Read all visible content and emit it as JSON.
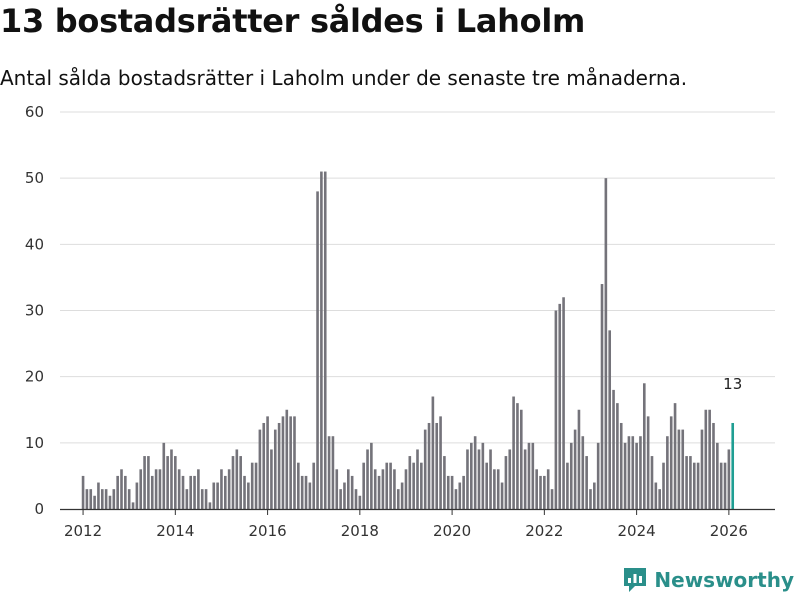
{
  "header": {
    "title": "13 bostadsrätter såldes i Laholm",
    "subtitle": "Antal sålda bostadsrätter i Laholm under de senaste tre månaderna."
  },
  "brand": {
    "name": "Newsworthy",
    "color": "#2a8f8a"
  },
  "colors": {
    "bar": "#74737a",
    "highlight": "#1f9e93",
    "grid": "#dddddd",
    "axis": "#333333"
  },
  "chart_data": {
    "type": "bar",
    "title": "13 bostadsrätter såldes i Laholm",
    "subtitle": "Antal sålda bostadsrätter i Laholm under de senaste tre månaderna.",
    "xlabel": "",
    "ylabel": "",
    "ylim": [
      0,
      60
    ],
    "yticks": [
      0,
      10,
      20,
      30,
      40,
      50,
      60
    ],
    "xlim": [
      2011.5,
      2027.0
    ],
    "xticks": [
      2012,
      2014,
      2016,
      2018,
      2020,
      2022,
      2024,
      2026
    ],
    "start": {
      "year": 2012,
      "month": 1
    },
    "grid": true,
    "highlight_label": "13",
    "values": [
      5,
      3,
      3,
      2,
      4,
      3,
      3,
      2,
      3,
      5,
      6,
      5,
      3,
      1,
      4,
      6,
      8,
      8,
      5,
      6,
      6,
      10,
      8,
      9,
      8,
      6,
      5,
      3,
      5,
      5,
      6,
      3,
      3,
      1,
      4,
      4,
      6,
      5,
      6,
      8,
      9,
      8,
      5,
      4,
      7,
      7,
      12,
      13,
      14,
      9,
      12,
      13,
      14,
      15,
      14,
      14,
      7,
      5,
      5,
      4,
      7,
      48,
      51,
      51,
      11,
      11,
      6,
      3,
      4,
      6,
      5,
      3,
      2,
      7,
      9,
      10,
      6,
      5,
      6,
      7,
      7,
      6,
      3,
      4,
      6,
      8,
      7,
      9,
      7,
      12,
      13,
      17,
      13,
      14,
      8,
      5,
      5,
      3,
      4,
      5,
      9,
      10,
      11,
      9,
      10,
      7,
      9,
      6,
      6,
      4,
      8,
      9,
      17,
      16,
      15,
      9,
      10,
      10,
      6,
      5,
      5,
      6,
      3,
      30,
      31,
      32,
      7,
      10,
      12,
      15,
      11,
      8,
      3,
      4,
      10,
      34,
      50,
      27,
      18,
      16,
      13,
      10,
      11,
      11,
      10,
      11,
      19,
      14,
      8,
      4,
      3,
      7,
      11,
      14,
      16,
      12,
      12,
      8,
      8,
      7,
      7,
      12,
      15,
      15,
      13,
      10,
      7,
      7,
      9,
      13
    ]
  }
}
